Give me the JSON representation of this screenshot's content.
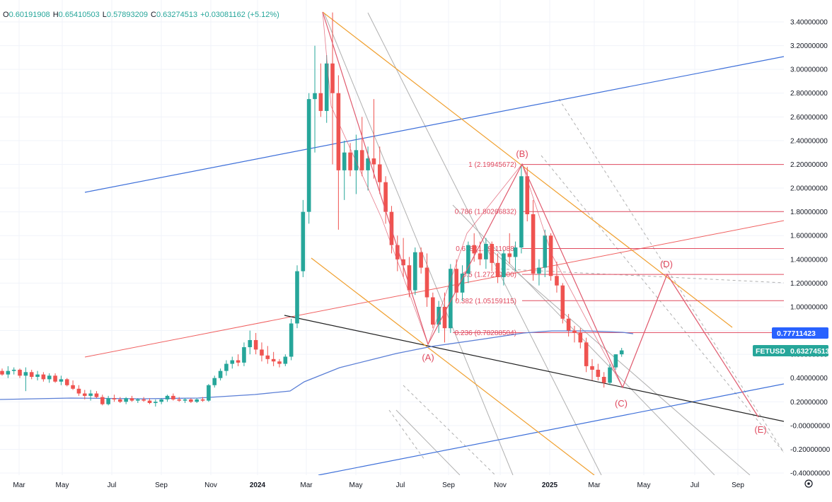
{
  "legend": {
    "open_label": "O",
    "open": "0.60191908",
    "high_label": "H",
    "high": "0.65410503",
    "low_label": "L",
    "low": "0.57893209",
    "close_label": "C",
    "close": "0.63274513",
    "change": "+0.03081162 (+5.12%)"
  },
  "badges": {
    "ma_value": "0.77711423",
    "symbol": "FETUSD",
    "price": "0.63274513"
  },
  "settings_icon": "gear-icon",
  "colors": {
    "up": "#26a69a",
    "down": "#ef5350",
    "ma": "#5b7fd6",
    "fib": "#e04a5f",
    "zigzag": "#e05a6e",
    "orange": "#f0a030",
    "blue_channel": "#3d6fd9",
    "red_channel": "#f06060",
    "black_line": "#222222",
    "gray_line": "#b0b0b0",
    "ma_badge": "#2962ff",
    "price_badge": "#26a69a"
  },
  "chart_data": {
    "type": "candlestick",
    "x_axis_labels": [
      "Mar",
      "May",
      "Jul",
      "Sep",
      "Nov",
      "2024",
      "Mar",
      "May",
      "Jul",
      "Sep",
      "Nov",
      "2025",
      "Mar",
      "May",
      "Jul",
      "Sep"
    ],
    "y_axis_labels": [
      "3.40000000",
      "3.20000000",
      "3.00000000",
      "2.80000000",
      "2.60000000",
      "2.40000000",
      "2.20000000",
      "2.00000000",
      "1.80000000",
      "1.60000000",
      "1.40000000",
      "1.20000000",
      "1.00000000",
      "0.80000000",
      "0.60000000",
      "0.40000000",
      "0.20000000",
      "-0.00000000",
      "-0.20000000",
      "-0.40000000"
    ],
    "ylim": [
      -0.4,
      3.45
    ],
    "fib_levels": [
      {
        "label": "1 (2.19945672)",
        "value": 2.19945672
      },
      {
        "label": "0.786 (1.80266832)",
        "value": 1.80266832
      },
      {
        "label": "0.618 (1.49111088)",
        "value": 1.49111088
      },
      {
        "label": "0.5 (1.27270000)",
        "value": 1.2727
      },
      {
        "label": "0.382 (1.05159115)",
        "value": 1.05159115
      },
      {
        "label": "0.236 (0.78288504)",
        "value": 0.78288504
      }
    ],
    "wave_labels": [
      {
        "label": "(A)",
        "value": 0.66
      },
      {
        "label": "(B)",
        "value": 2.2
      },
      {
        "label": "(C)",
        "value": 0.3
      },
      {
        "label": "(D)",
        "value": 1.28
      },
      {
        "label": "(E)",
        "value": -0.05
      }
    ],
    "candles": [
      [
        0.46,
        0.48,
        0.42,
        0.43
      ],
      [
        0.43,
        0.5,
        0.4,
        0.46
      ],
      [
        0.46,
        0.49,
        0.43,
        0.47
      ],
      [
        0.47,
        0.48,
        0.4,
        0.42
      ],
      [
        0.42,
        0.49,
        0.29,
        0.45
      ],
      [
        0.45,
        0.47,
        0.39,
        0.41
      ],
      [
        0.41,
        0.46,
        0.38,
        0.43
      ],
      [
        0.43,
        0.45,
        0.37,
        0.39
      ],
      [
        0.39,
        0.44,
        0.36,
        0.42
      ],
      [
        0.42,
        0.44,
        0.36,
        0.37
      ],
      [
        0.37,
        0.42,
        0.34,
        0.39
      ],
      [
        0.39,
        0.4,
        0.33,
        0.34
      ],
      [
        0.34,
        0.38,
        0.3,
        0.31
      ],
      [
        0.31,
        0.34,
        0.25,
        0.27
      ],
      [
        0.27,
        0.3,
        0.22,
        0.25
      ],
      [
        0.25,
        0.3,
        0.21,
        0.27
      ],
      [
        0.27,
        0.29,
        0.23,
        0.24
      ],
      [
        0.24,
        0.26,
        0.17,
        0.18
      ],
      [
        0.18,
        0.25,
        0.17,
        0.23
      ],
      [
        0.23,
        0.26,
        0.2,
        0.22
      ],
      [
        0.22,
        0.24,
        0.19,
        0.2
      ],
      [
        0.2,
        0.24,
        0.18,
        0.23
      ],
      [
        0.23,
        0.25,
        0.2,
        0.21
      ],
      [
        0.21,
        0.23,
        0.19,
        0.22
      ],
      [
        0.22,
        0.24,
        0.2,
        0.21
      ],
      [
        0.21,
        0.23,
        0.18,
        0.19
      ],
      [
        0.19,
        0.22,
        0.16,
        0.2
      ],
      [
        0.2,
        0.23,
        0.18,
        0.22
      ],
      [
        0.22,
        0.26,
        0.2,
        0.25
      ],
      [
        0.25,
        0.27,
        0.21,
        0.22
      ],
      [
        0.22,
        0.24,
        0.2,
        0.21
      ],
      [
        0.21,
        0.23,
        0.19,
        0.22
      ],
      [
        0.22,
        0.23,
        0.19,
        0.2
      ],
      [
        0.2,
        0.23,
        0.19,
        0.22
      ],
      [
        0.22,
        0.24,
        0.2,
        0.21
      ],
      [
        0.21,
        0.35,
        0.2,
        0.34
      ],
      [
        0.34,
        0.42,
        0.32,
        0.4
      ],
      [
        0.4,
        0.48,
        0.38,
        0.46
      ],
      [
        0.46,
        0.55,
        0.42,
        0.52
      ],
      [
        0.52,
        0.58,
        0.48,
        0.55
      ],
      [
        0.55,
        0.6,
        0.5,
        0.53
      ],
      [
        0.53,
        0.7,
        0.5,
        0.66
      ],
      [
        0.66,
        0.8,
        0.6,
        0.72
      ],
      [
        0.72,
        0.78,
        0.6,
        0.64
      ],
      [
        0.64,
        0.7,
        0.54,
        0.59
      ],
      [
        0.59,
        0.67,
        0.52,
        0.56
      ],
      [
        0.56,
        0.62,
        0.5,
        0.54
      ],
      [
        0.54,
        0.56,
        0.49,
        0.52
      ],
      [
        0.52,
        0.6,
        0.5,
        0.58
      ],
      [
        0.58,
        0.9,
        0.55,
        0.86
      ],
      [
        0.86,
        1.35,
        0.82,
        1.3
      ],
      [
        1.3,
        1.9,
        1.25,
        1.8
      ],
      [
        1.8,
        2.8,
        1.7,
        2.75
      ],
      [
        2.75,
        3.2,
        2.3,
        2.8
      ],
      [
        2.8,
        3.05,
        2.6,
        2.65
      ],
      [
        2.65,
        3.12,
        2.55,
        3.05
      ],
      [
        3.05,
        3.48,
        2.2,
        2.8
      ],
      [
        2.8,
        2.95,
        1.65,
        2.15
      ],
      [
        2.15,
        2.4,
        1.9,
        2.3
      ],
      [
        2.3,
        2.38,
        2.1,
        2.15
      ],
      [
        2.15,
        2.45,
        1.95,
        2.32
      ],
      [
        2.32,
        2.6,
        2.1,
        2.15
      ],
      [
        2.15,
        2.35,
        1.98,
        2.25
      ],
      [
        2.25,
        2.75,
        2.08,
        2.2
      ],
      [
        2.2,
        2.35,
        1.95,
        2.05
      ],
      [
        2.05,
        2.1,
        1.7,
        1.8
      ],
      [
        1.8,
        1.85,
        1.45,
        1.52
      ],
      [
        1.52,
        1.6,
        1.3,
        1.4
      ],
      [
        1.4,
        1.58,
        1.25,
        1.35
      ],
      [
        1.35,
        1.42,
        1.08,
        1.14
      ],
      [
        1.14,
        1.5,
        1.1,
        1.46
      ],
      [
        1.46,
        1.5,
        1.28,
        1.33
      ],
      [
        1.33,
        1.45,
        1.0,
        1.08
      ],
      [
        1.08,
        1.12,
        0.82,
        0.85
      ],
      [
        0.85,
        1.05,
        0.78,
        1.0
      ],
      [
        1.0,
        1.12,
        0.7,
        0.82
      ],
      [
        0.82,
        1.36,
        0.78,
        1.32
      ],
      [
        1.32,
        1.4,
        1.05,
        1.12
      ],
      [
        1.12,
        1.35,
        1.05,
        1.28
      ],
      [
        1.28,
        1.55,
        1.2,
        1.52
      ],
      [
        1.52,
        1.62,
        1.38,
        1.45
      ],
      [
        1.45,
        1.55,
        1.35,
        1.4
      ],
      [
        1.4,
        1.58,
        1.32,
        1.53
      ],
      [
        1.53,
        1.55,
        1.3,
        1.37
      ],
      [
        1.37,
        1.45,
        1.2,
        1.25
      ],
      [
        1.25,
        1.48,
        1.18,
        1.45
      ],
      [
        1.45,
        1.62,
        1.36,
        1.42
      ],
      [
        1.42,
        1.55,
        1.3,
        1.5
      ],
      [
        1.5,
        2.2,
        1.45,
        2.1
      ],
      [
        2.1,
        2.18,
        1.72,
        1.78
      ],
      [
        1.78,
        1.9,
        1.22,
        1.28
      ],
      [
        1.28,
        1.4,
        1.18,
        1.33
      ],
      [
        1.33,
        1.65,
        1.25,
        1.6
      ],
      [
        1.6,
        1.62,
        1.22,
        1.26
      ],
      [
        1.26,
        1.38,
        1.12,
        1.18
      ],
      [
        1.18,
        1.2,
        0.86,
        0.9
      ],
      [
        0.9,
        0.94,
        0.75,
        0.8
      ],
      [
        0.8,
        0.84,
        0.7,
        0.78
      ],
      [
        0.78,
        0.82,
        0.65,
        0.7
      ],
      [
        0.7,
        0.74,
        0.45,
        0.5
      ],
      [
        0.5,
        0.56,
        0.38,
        0.47
      ],
      [
        0.47,
        0.52,
        0.38,
        0.41
      ],
      [
        0.41,
        0.45,
        0.32,
        0.36
      ],
      [
        0.36,
        0.52,
        0.34,
        0.49
      ],
      [
        0.49,
        0.6,
        0.47,
        0.6
      ],
      [
        0.6,
        0.654,
        0.579,
        0.633
      ]
    ]
  }
}
